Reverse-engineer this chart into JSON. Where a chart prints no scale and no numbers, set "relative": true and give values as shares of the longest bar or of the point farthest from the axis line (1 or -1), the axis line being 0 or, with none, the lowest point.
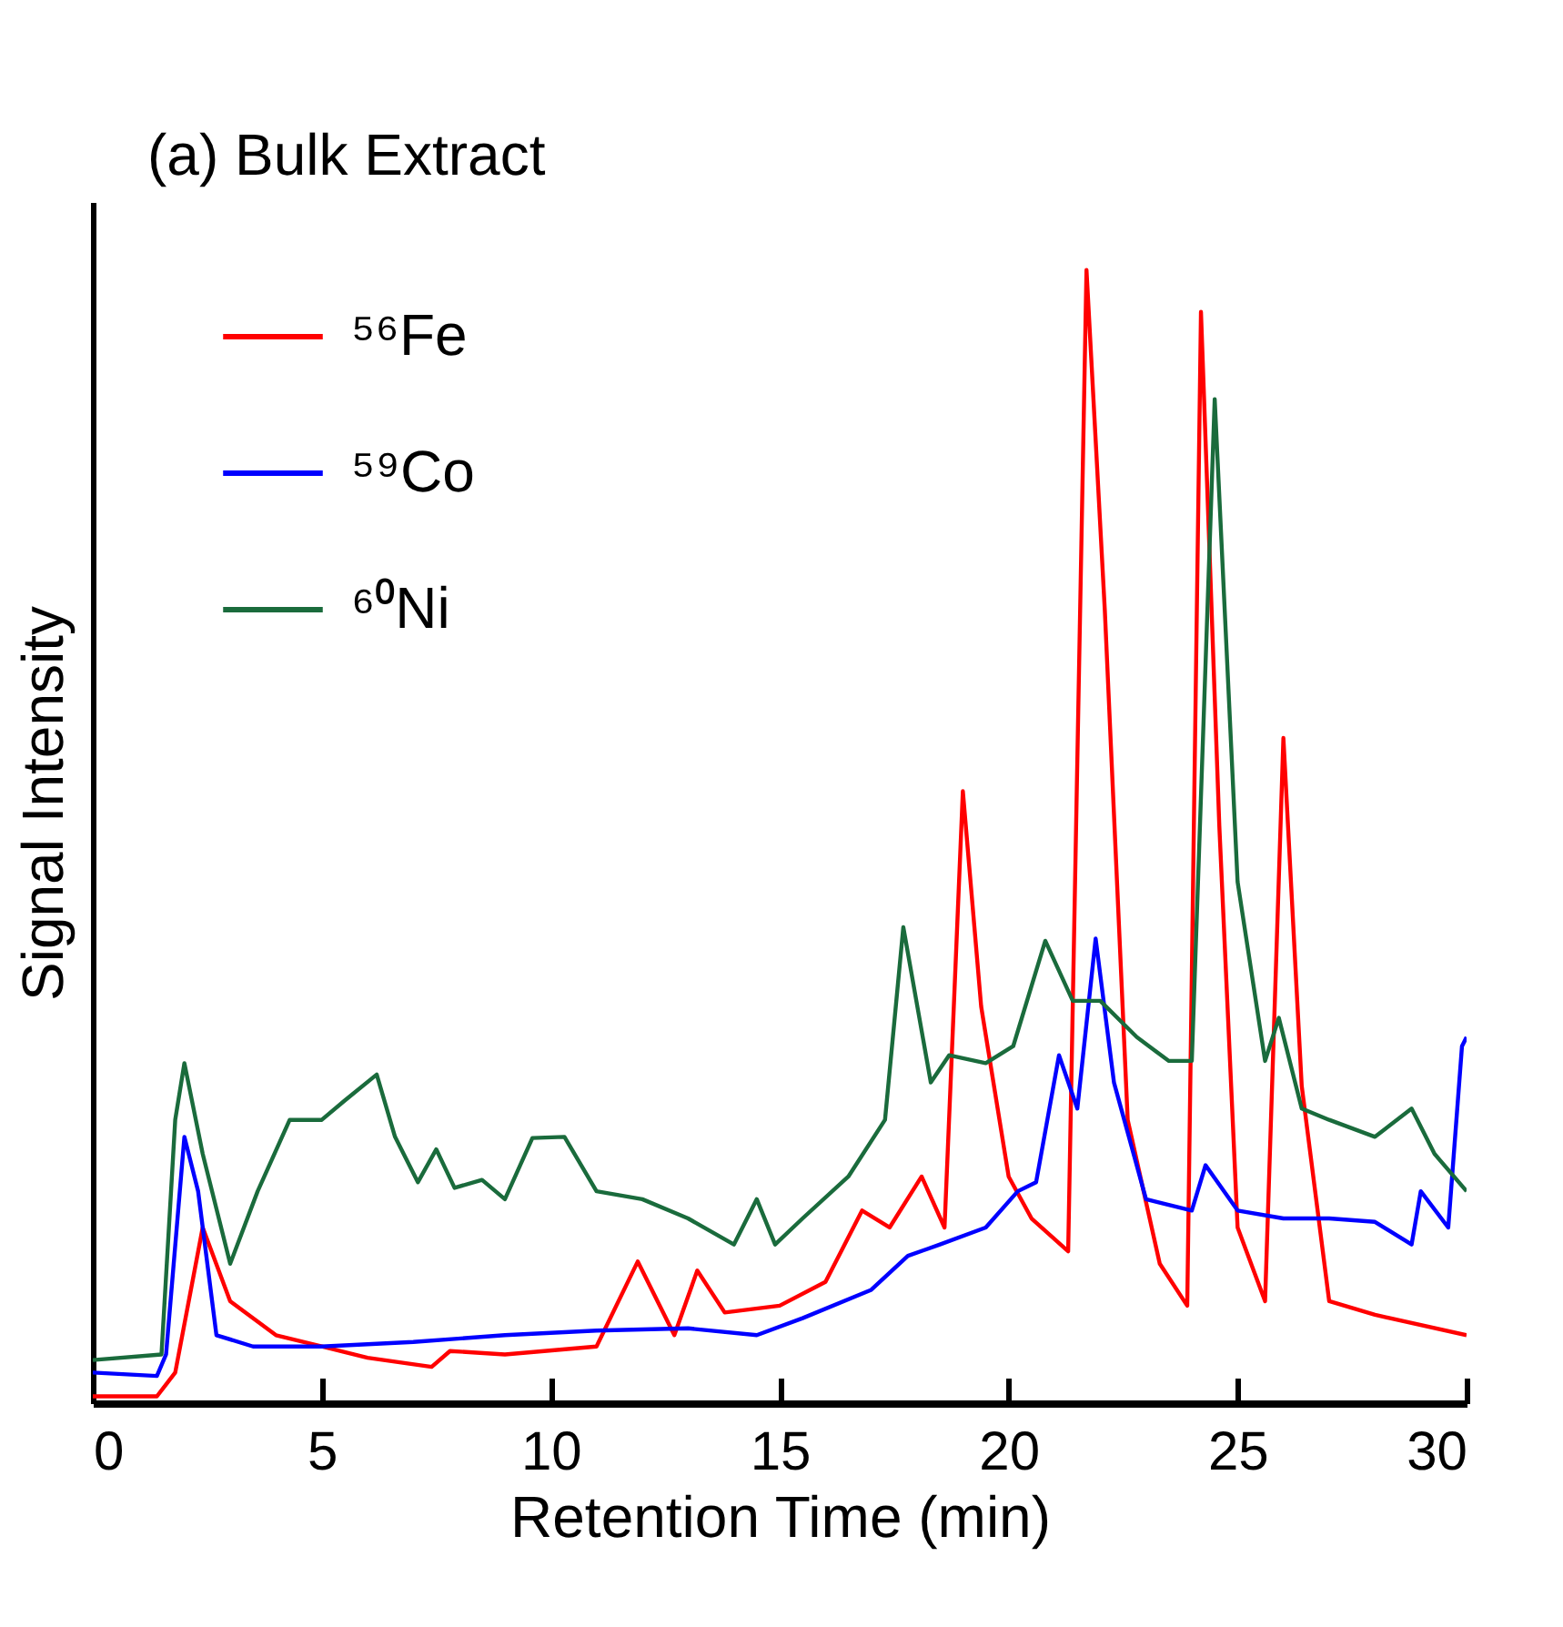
{
  "chart_data": {
    "type": "line",
    "title": "(a) Bulk Extract",
    "xlabel": "Retention Time (min)",
    "ylabel": "Signal Intensity",
    "relative": true,
    "xlim": [
      0,
      30
    ],
    "xticks": [
      0,
      5,
      10,
      15,
      20,
      25,
      30
    ],
    "legend": "top left",
    "grid": false,
    "marker": "none",
    "line_style": "solid",
    "series": [
      {
        "name": "⁵⁶Fe",
        "color": "#ff0000",
        "x": [
          0,
          1.4,
          1.8,
          2.4,
          3,
          4,
          5,
          6,
          7.4,
          7.8,
          9,
          11,
          11.9,
          12.7,
          13.2,
          13.8,
          15,
          16,
          16.8,
          17.4,
          18.1,
          18.6,
          19.0,
          19.4,
          20,
          20.5,
          21.3,
          21.7,
          22.1,
          22.6,
          23.3,
          23.9,
          24.2,
          24.6,
          25,
          25.6,
          26.0,
          26.4,
          27,
          28,
          30
        ],
        "values": [
          0.006,
          0.006,
          0.027,
          0.155,
          0.09,
          0.06,
          0.05,
          0.04,
          0.032,
          0.046,
          0.043,
          0.05,
          0.125,
          0.06,
          0.117,
          0.08,
          0.086,
          0.107,
          0.17,
          0.155,
          0.2,
          0.155,
          0.54,
          0.35,
          0.2,
          0.163,
          0.134,
          1.0,
          0.7,
          0.25,
          0.123,
          0.086,
          0.963,
          0.51,
          0.155,
          0.09,
          0.587,
          0.28,
          0.09,
          0.078,
          0.06
        ]
      },
      {
        "name": "⁵⁹Co",
        "color": "#0000ff",
        "x": [
          0,
          1.4,
          1.6,
          2.0,
          2.3,
          2.7,
          3.5,
          5,
          7,
          9,
          11,
          13,
          14.5,
          15.5,
          17,
          17.8,
          18.5,
          19.5,
          20.2,
          20.6,
          21.1,
          21.5,
          21.9,
          22.3,
          23,
          24,
          24.3,
          25,
          26,
          27,
          28,
          28.8,
          29,
          29.6,
          29.9,
          30
        ],
        "values": [
          0.027,
          0.024,
          0.043,
          0.235,
          0.187,
          0.06,
          0.05,
          0.05,
          0.054,
          0.06,
          0.064,
          0.066,
          0.06,
          0.075,
          0.1,
          0.13,
          0.14,
          0.155,
          0.187,
          0.195,
          0.307,
          0.26,
          0.41,
          0.283,
          0.18,
          0.17,
          0.21,
          0.17,
          0.163,
          0.163,
          0.16,
          0.14,
          0.187,
          0.155,
          0.315,
          0.323
        ]
      },
      {
        "name": "⁶⁰Ni",
        "color": "#1a6b3c",
        "x": [
          0,
          1.5,
          1.8,
          2.0,
          2.4,
          3.0,
          3.6,
          4.3,
          5,
          5.5,
          6.2,
          6.6,
          7.1,
          7.5,
          7.9,
          8.5,
          9.0,
          9.6,
          10.3,
          11,
          12,
          13,
          14.0,
          14.5,
          14.9,
          15.5,
          16.5,
          17.3,
          17.7,
          18.3,
          18.7,
          19.5,
          20.1,
          20.8,
          21.4,
          22.0,
          22.8,
          23.5,
          24.0,
          24.5,
          25.0,
          25.6,
          25.9,
          26.4,
          27,
          28,
          28.8,
          29.3,
          30
        ],
        "values": [
          0.038,
          0.043,
          0.25,
          0.3,
          0.22,
          0.123,
          0.187,
          0.25,
          0.25,
          0.267,
          0.29,
          0.235,
          0.195,
          0.224,
          0.19,
          0.197,
          0.18,
          0.234,
          0.235,
          0.187,
          0.18,
          0.163,
          0.14,
          0.18,
          0.14,
          0.163,
          0.2,
          0.25,
          0.42,
          0.283,
          0.307,
          0.3,
          0.315,
          0.408,
          0.355,
          0.355,
          0.323,
          0.302,
          0.302,
          0.886,
          0.46,
          0.302,
          0.34,
          0.26,
          0.25,
          0.235,
          0.26,
          0.22,
          0.187
        ]
      }
    ]
  }
}
